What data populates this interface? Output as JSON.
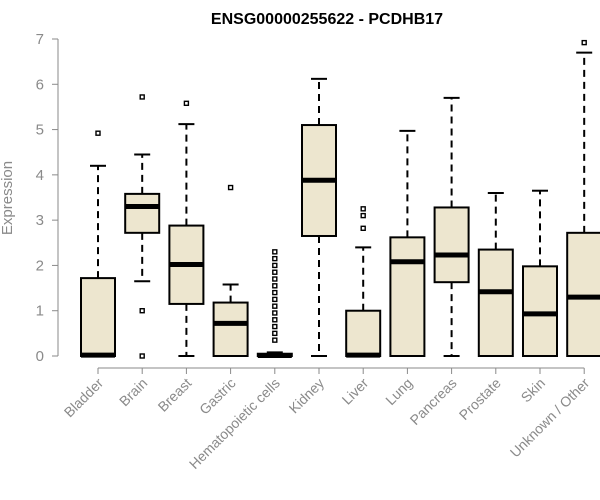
{
  "chart_data": {
    "type": "boxplot",
    "title": "ENSG00000255622 - PCDHB17",
    "xlabel": "",
    "ylabel": "Expression",
    "ylim": [
      0,
      7
    ],
    "yticks": [
      0,
      1,
      2,
      3,
      4,
      5,
      6,
      7
    ],
    "box_fill": "#ede6cf",
    "stroke": "#000000",
    "categories": [
      "Bladder",
      "Brain",
      "Breast",
      "Gastric",
      "Hematopoietic cells",
      "Kidney",
      "Liver",
      "Lung",
      "Pancreas",
      "Prostate",
      "Skin",
      "Unknown / Other"
    ],
    "boxes": [
      {
        "min": 0,
        "q1": 0,
        "median": 0.02,
        "q3": 1.72,
        "max": 4.2,
        "outliers": [
          4.92
        ]
      },
      {
        "min": 1.65,
        "q1": 2.72,
        "median": 3.3,
        "q3": 3.58,
        "max": 4.45,
        "outliers": [
          5.72,
          1.0,
          0
        ]
      },
      {
        "min": 0,
        "q1": 1.15,
        "median": 2.02,
        "q3": 2.88,
        "max": 5.12,
        "outliers": [
          5.58
        ]
      },
      {
        "min": 0,
        "q1": 0,
        "median": 0.72,
        "q3": 1.18,
        "max": 1.58,
        "outliers": [
          3.72
        ]
      },
      {
        "min": 0,
        "q1": 0,
        "median": 0.01,
        "q3": 0.05,
        "max": 0.08,
        "outliers": [
          0.35,
          0.5,
          0.65,
          0.8,
          0.95,
          1.1,
          1.25,
          1.4,
          1.55,
          1.7,
          1.85,
          2.0,
          2.15,
          2.3
        ]
      },
      {
        "min": 0,
        "q1": 2.65,
        "median": 3.88,
        "q3": 5.1,
        "max": 6.12,
        "outliers": []
      },
      {
        "min": 0,
        "q1": 0,
        "median": 0.02,
        "q3": 1.0,
        "max": 2.4,
        "outliers": [
          2.82,
          3.1,
          3.25
        ]
      },
      {
        "min": 0,
        "q1": 0,
        "median": 2.08,
        "q3": 2.62,
        "max": 4.97,
        "outliers": []
      },
      {
        "min": 0,
        "q1": 1.63,
        "median": 2.23,
        "q3": 3.28,
        "max": 5.7,
        "outliers": []
      },
      {
        "min": 0,
        "q1": 0,
        "median": 1.42,
        "q3": 2.35,
        "max": 3.6,
        "outliers": []
      },
      {
        "min": 0,
        "q1": 0,
        "median": 0.93,
        "q3": 1.98,
        "max": 3.65,
        "outliers": []
      },
      {
        "min": 0,
        "q1": 0,
        "median": 1.3,
        "q3": 2.72,
        "max": 6.7,
        "outliers": [
          6.92
        ]
      }
    ]
  }
}
